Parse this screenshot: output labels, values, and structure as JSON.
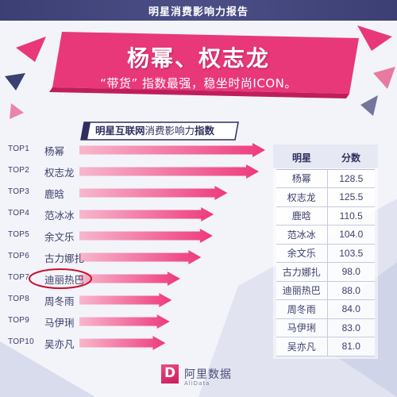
{
  "header": {
    "top_title": "明星消费影响力报告",
    "banner_title": "杨幂、权志龙",
    "banner_subtitle": "“带货” 指数最强，稳坐时尚ICON。"
  },
  "section": {
    "part1": "明星互联网",
    "part2": "消费影响力",
    "part3": "指数"
  },
  "table_header": {
    "name": "明星",
    "score": "分数"
  },
  "colors": {
    "banner_pink": "#e8387a",
    "arrow_pink": "#ee3a7c",
    "navy": "#2d2f5e",
    "highlight_circle": "#c8102e"
  },
  "chart_data": {
    "type": "bar",
    "title": "明星互联网消费影响力指数",
    "ranks": [
      "TOP1",
      "TOP2",
      "TOP3",
      "TOP4",
      "TOP5",
      "TOP6",
      "TOP7",
      "TOP8",
      "TOP9",
      "TOP10"
    ],
    "categories": [
      "杨幂",
      "权志龙",
      "鹿晗",
      "范冰冰",
      "余文乐",
      "古力娜扎",
      "迪丽热巴",
      "周冬雨",
      "马伊琍",
      "吴亦凡"
    ],
    "values": [
      128.5,
      125.5,
      110.5,
      104.0,
      103.5,
      98.0,
      88.0,
      84.0,
      83.0,
      81.0
    ],
    "value_labels": [
      "128.5",
      "125.5",
      "110.5",
      "104.0",
      "103.5",
      "98.0",
      "88.0",
      "84.0",
      "83.0",
      "81.0"
    ],
    "highlight": "迪丽热巴"
  },
  "logo": {
    "text": "阿里数据",
    "sub": "AliData",
    "letter": "D"
  }
}
